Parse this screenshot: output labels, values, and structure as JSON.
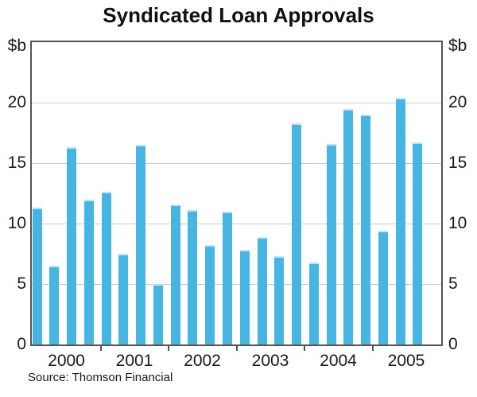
{
  "title": "Syndicated Loan Approvals",
  "axes": {
    "left_unit": "$b",
    "right_unit": "$b"
  },
  "source_note": "Source: Thomson Financial",
  "chart_data": {
    "type": "bar",
    "title": "Syndicated Loan Approvals",
    "unit": "$b",
    "ylim": [
      0,
      25
    ],
    "yticks": [
      0,
      5,
      10,
      15,
      20
    ],
    "grid": true,
    "legend_position": "none",
    "frequency": "quarterly",
    "x_year_labels": [
      "2000",
      "2001",
      "2002",
      "2003",
      "2004",
      "2005"
    ],
    "categories": [
      "2000 Q1",
      "2000 Q2",
      "2000 Q3",
      "2000 Q4",
      "2001 Q1",
      "2001 Q2",
      "2001 Q3",
      "2001 Q4",
      "2002 Q1",
      "2002 Q2",
      "2002 Q3",
      "2002 Q4",
      "2003 Q1",
      "2003 Q2",
      "2003 Q3",
      "2003 Q4",
      "2004 Q1",
      "2004 Q2",
      "2004 Q3",
      "2004 Q4",
      "2005 Q1",
      "2005 Q2",
      "2005 Q3"
    ],
    "values": [
      11.3,
      6.5,
      16.3,
      12.0,
      12.6,
      7.5,
      16.5,
      5.0,
      11.6,
      11.1,
      8.2,
      11.0,
      7.8,
      8.9,
      7.3,
      18.3,
      6.8,
      16.6,
      19.5,
      19.0,
      9.4,
      20.4,
      16.7
    ],
    "bar_color": "#46b5e2",
    "bar_top_highlight_color": "#bce4f4",
    "gridline_color": "#cbcbcb",
    "frame_color": "#545454",
    "source": "Source: Thomson Financial"
  }
}
